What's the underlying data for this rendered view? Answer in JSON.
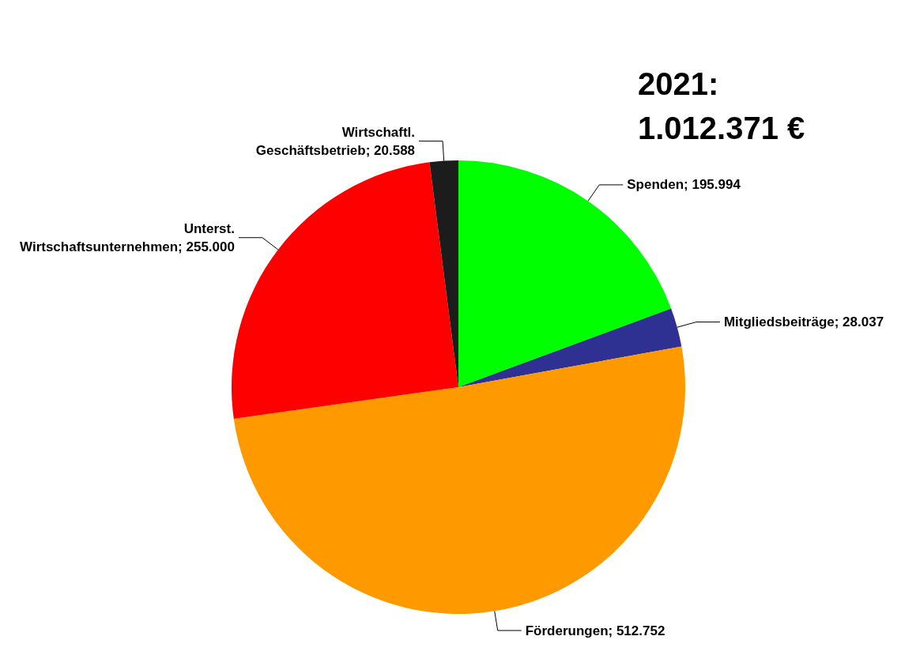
{
  "chart_data": {
    "type": "pie",
    "title": "2021: 1.012.371 €",
    "categories": [
      "Spenden",
      "Mitgliedsbeiträge",
      "Förderungen",
      "Unterst. Wirtschaftsunternehmen",
      "Wirtschaftl. Geschäftsbetrieb"
    ],
    "values": [
      195994,
      28037,
      512752,
      255000,
      20588
    ],
    "value_labels": [
      "195.994",
      "28.037",
      "512.752",
      "255.000",
      "20.588"
    ],
    "colors": [
      "#00ff00",
      "#2e3192",
      "#ff9900",
      "#ff0000",
      "#1c1c1c"
    ],
    "legend": false
  }
}
